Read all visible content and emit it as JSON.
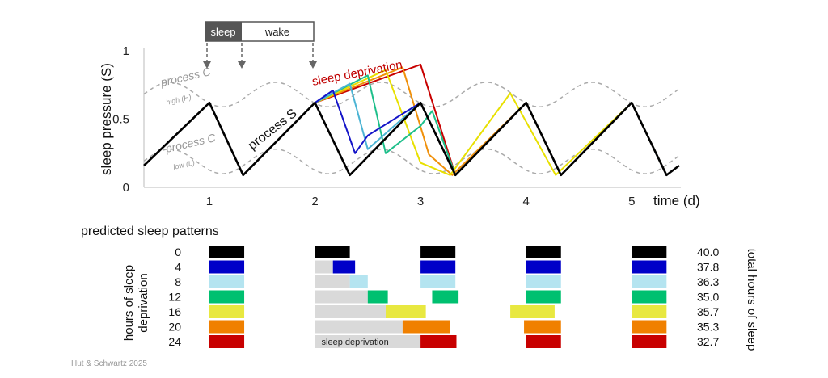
{
  "credit": "Hut & Schwartz 2025",
  "chart_data": {
    "type": "line",
    "ylabel": "sleep pressure (S)",
    "xlabel": "time (d)",
    "xlim": [
      0.38,
      5.45
    ],
    "ylim": [
      0,
      1
    ],
    "yticks": [
      {
        "v": 0,
        "label": "0"
      },
      {
        "v": 0.5,
        "label": "0.5"
      },
      {
        "v": 1,
        "label": "1"
      }
    ],
    "xticks": [
      {
        "v": 1,
        "label": "1"
      },
      {
        "v": 2,
        "label": "2"
      },
      {
        "v": 3,
        "label": "3"
      },
      {
        "v": 4,
        "label": "4"
      },
      {
        "v": 5,
        "label": "5"
      }
    ],
    "sleep_wake_bar": {
      "sleep_label": "sleep",
      "wake_label": "wake"
    },
    "process_c": {
      "high_label": "process C",
      "high_sublabel": "high (H)",
      "low_label": "process C",
      "low_sublabel": "low (L)",
      "high_mean": 0.68,
      "low_mean": 0.19,
      "amplitude": 0.09
    },
    "process_s_label": "process S",
    "sleep_deprivation_label": "sleep deprivation",
    "series": [
      {
        "name": "0",
        "color": "#000000",
        "points": [
          [
            0.38,
            0.16
          ],
          [
            1.0,
            0.62
          ],
          [
            1.32,
            0.09
          ],
          [
            2.0,
            0.62
          ],
          [
            2.33,
            0.09
          ],
          [
            3.0,
            0.62
          ],
          [
            3.33,
            0.09
          ],
          [
            4.0,
            0.62
          ],
          [
            4.33,
            0.09
          ],
          [
            5.0,
            0.62
          ],
          [
            5.33,
            0.09
          ],
          [
            5.45,
            0.16
          ]
        ]
      },
      {
        "name": "4",
        "color": "#1414c8",
        "points": [
          [
            2.0,
            0.62
          ],
          [
            2.17,
            0.71
          ],
          [
            2.38,
            0.25
          ],
          [
            2.5,
            0.38
          ],
          [
            3.0,
            0.62
          ],
          [
            3.33,
            0.09
          ],
          [
            4.0,
            0.62
          ],
          [
            4.33,
            0.09
          ],
          [
            5.0,
            0.62
          ],
          [
            5.33,
            0.09
          ]
        ]
      },
      {
        "name": "8",
        "color": "#4cb4d4",
        "points": [
          [
            2.0,
            0.62
          ],
          [
            2.33,
            0.76
          ],
          [
            2.5,
            0.28
          ],
          [
            3.0,
            0.62
          ],
          [
            3.33,
            0.09
          ],
          [
            4.0,
            0.62
          ],
          [
            4.33,
            0.09
          ],
          [
            5.0,
            0.62
          ],
          [
            5.33,
            0.09
          ]
        ]
      },
      {
        "name": "12",
        "color": "#1dbf8a",
        "points": [
          [
            2.0,
            0.62
          ],
          [
            2.5,
            0.82
          ],
          [
            2.67,
            0.25
          ],
          [
            3.0,
            0.45
          ],
          [
            3.11,
            0.56
          ],
          [
            3.33,
            0.09
          ],
          [
            4.0,
            0.62
          ],
          [
            4.33,
            0.09
          ],
          [
            5.0,
            0.62
          ],
          [
            5.33,
            0.09
          ]
        ]
      },
      {
        "name": "16",
        "color": "#e8e000",
        "points": [
          [
            2.0,
            0.62
          ],
          [
            2.67,
            0.86
          ],
          [
            3.0,
            0.18
          ],
          [
            3.28,
            0.09
          ],
          [
            3.85,
            0.69
          ],
          [
            4.28,
            0.09
          ],
          [
            5.0,
            0.62
          ],
          [
            5.33,
            0.09
          ]
        ]
      },
      {
        "name": "20",
        "color": "#f0900a",
        "points": [
          [
            2.0,
            0.62
          ],
          [
            2.83,
            0.88
          ],
          [
            3.08,
            0.24
          ],
          [
            3.3,
            0.09
          ],
          [
            4.0,
            0.62
          ],
          [
            4.33,
            0.09
          ],
          [
            5.0,
            0.62
          ],
          [
            5.33,
            0.09
          ]
        ]
      },
      {
        "name": "24",
        "color": "#c80000",
        "points": [
          [
            2.0,
            0.62
          ],
          [
            3.0,
            0.9
          ],
          [
            3.33,
            0.09
          ],
          [
            4.0,
            0.62
          ],
          [
            4.33,
            0.09
          ],
          [
            5.0,
            0.62
          ],
          [
            5.33,
            0.09
          ]
        ]
      }
    ],
    "patterns": {
      "title": "predicted sleep patterns",
      "left_label": "hours of sleep deprivation",
      "right_label": "total hours of sleep",
      "rows": [
        {
          "deprivation": "0",
          "color": "#000000",
          "total": "40.0",
          "sleep": [
            [
              1.0,
              1.33
            ],
            [
              2.0,
              2.33
            ],
            [
              3.0,
              3.33
            ],
            [
              4.0,
              4.33
            ],
            [
              5.0,
              5.33
            ]
          ],
          "awake_after": []
        },
        {
          "deprivation": "4",
          "color": "#0000c8",
          "total": "37.8",
          "sleep": [
            [
              1.0,
              1.33
            ],
            [
              2.17,
              2.38
            ],
            [
              3.0,
              3.33
            ],
            [
              4.0,
              4.33
            ],
            [
              5.0,
              5.33
            ]
          ],
          "awake_after": [
            [
              2.0,
              2.17
            ]
          ]
        },
        {
          "deprivation": "8",
          "color": "#b4e4f0",
          "total": "36.3",
          "sleep": [
            [
              1.0,
              1.33
            ],
            [
              2.33,
              2.5
            ],
            [
              3.0,
              3.33
            ],
            [
              4.0,
              4.33
            ],
            [
              5.0,
              5.33
            ]
          ],
          "awake_after": [
            [
              2.0,
              2.33
            ]
          ]
        },
        {
          "deprivation": "12",
          "color": "#00c070",
          "total": "35.0",
          "sleep": [
            [
              1.0,
              1.33
            ],
            [
              2.5,
              2.69
            ],
            [
              3.11,
              3.36
            ],
            [
              4.0,
              4.33
            ],
            [
              5.0,
              5.33
            ]
          ],
          "awake_after": [
            [
              2.0,
              2.5
            ]
          ]
        },
        {
          "deprivation": "16",
          "color": "#e8e840",
          "total": "35.7",
          "sleep": [
            [
              1.0,
              1.33
            ],
            [
              2.67,
              3.05
            ],
            [
              3.85,
              4.27
            ],
            [
              5.0,
              5.33
            ]
          ],
          "awake_after": [
            [
              2.0,
              2.67
            ]
          ]
        },
        {
          "deprivation": "20",
          "color": "#f08000",
          "total": "35.3",
          "sleep": [
            [
              1.0,
              1.33
            ],
            [
              2.83,
              3.28
            ],
            [
              3.98,
              4.33
            ],
            [
              5.0,
              5.33
            ]
          ],
          "awake_after": [
            [
              2.0,
              2.83
            ]
          ]
        },
        {
          "deprivation": "24",
          "color": "#c80000",
          "total": "32.7",
          "sleep": [
            [
              1.0,
              1.33
            ],
            [
              3.0,
              3.34
            ],
            [
              4.0,
              4.33
            ],
            [
              5.0,
              5.33
            ]
          ],
          "awake_after": [
            [
              2.0,
              3.0
            ]
          ],
          "awake_label": "sleep deprivation"
        }
      ]
    }
  }
}
